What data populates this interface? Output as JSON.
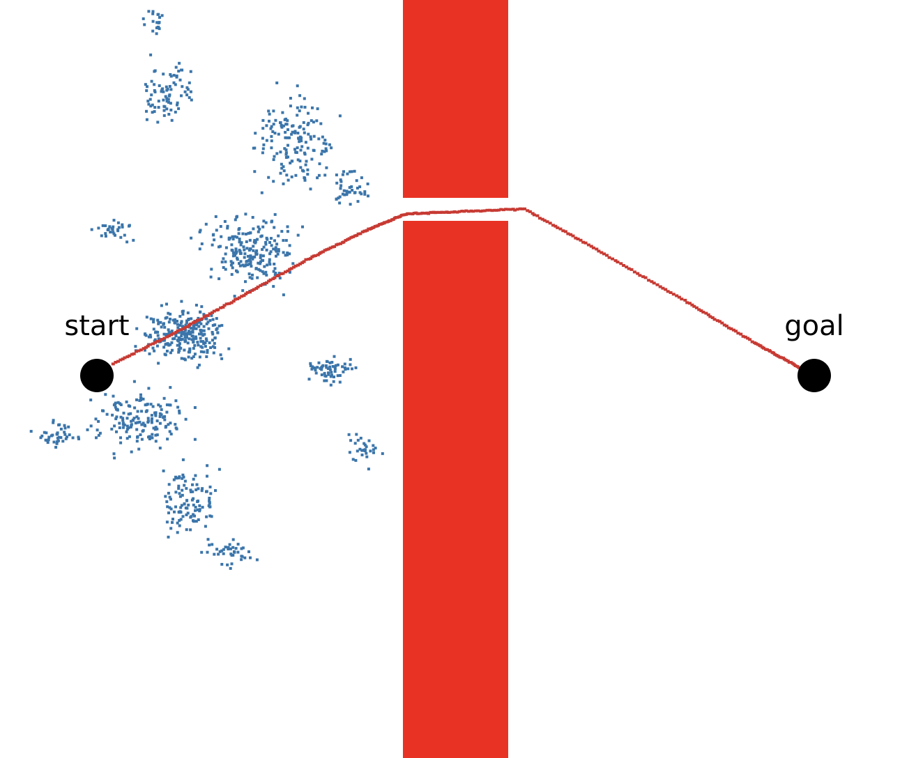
{
  "labels": {
    "start": "start",
    "goal": "goal"
  },
  "colors": {
    "background": "#ffffff",
    "obstacle": "#e83324",
    "explored_points": "#3b75aa",
    "path": "#c73a33",
    "endpoints": "#000000"
  }
}
